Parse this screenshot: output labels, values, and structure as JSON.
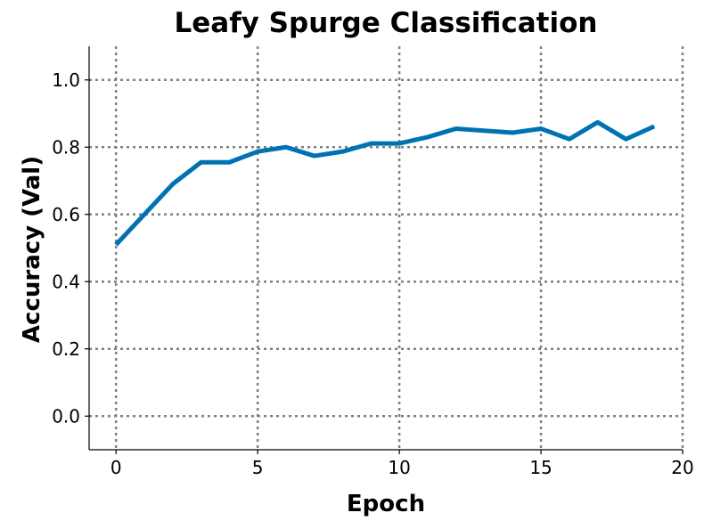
{
  "chart_data": {
    "type": "line",
    "title": "Leafy Spurge Classification",
    "xlabel": "Epoch",
    "ylabel": "Accuracy (Val)",
    "xlim": [
      -0.95,
      20
    ],
    "ylim": [
      -0.1,
      1.1
    ],
    "xticks": [
      0,
      5,
      10,
      15,
      20
    ],
    "yticks": [
      0.0,
      0.2,
      0.4,
      0.6,
      0.8,
      1.0
    ],
    "xtick_labels": [
      "0",
      "5",
      "10",
      "15",
      "20"
    ],
    "ytick_labels": [
      "0.0",
      "0.2",
      "0.4",
      "0.6",
      "0.8",
      "1.0"
    ],
    "grid": true,
    "spines": [
      "left",
      "bottom"
    ],
    "series": [
      {
        "color": "#0072b2",
        "x": [
          0,
          1,
          2,
          3,
          4,
          5,
          6,
          7,
          8,
          9,
          10,
          11,
          12,
          13,
          14,
          15,
          16,
          17,
          18,
          19
        ],
        "y": [
          0.51,
          0.6,
          0.69,
          0.755,
          0.755,
          0.787,
          0.8,
          0.774,
          0.787,
          0.811,
          0.811,
          0.83,
          0.855,
          0.849,
          0.843,
          0.855,
          0.824,
          0.874,
          0.824,
          0.862
        ]
      }
    ]
  }
}
